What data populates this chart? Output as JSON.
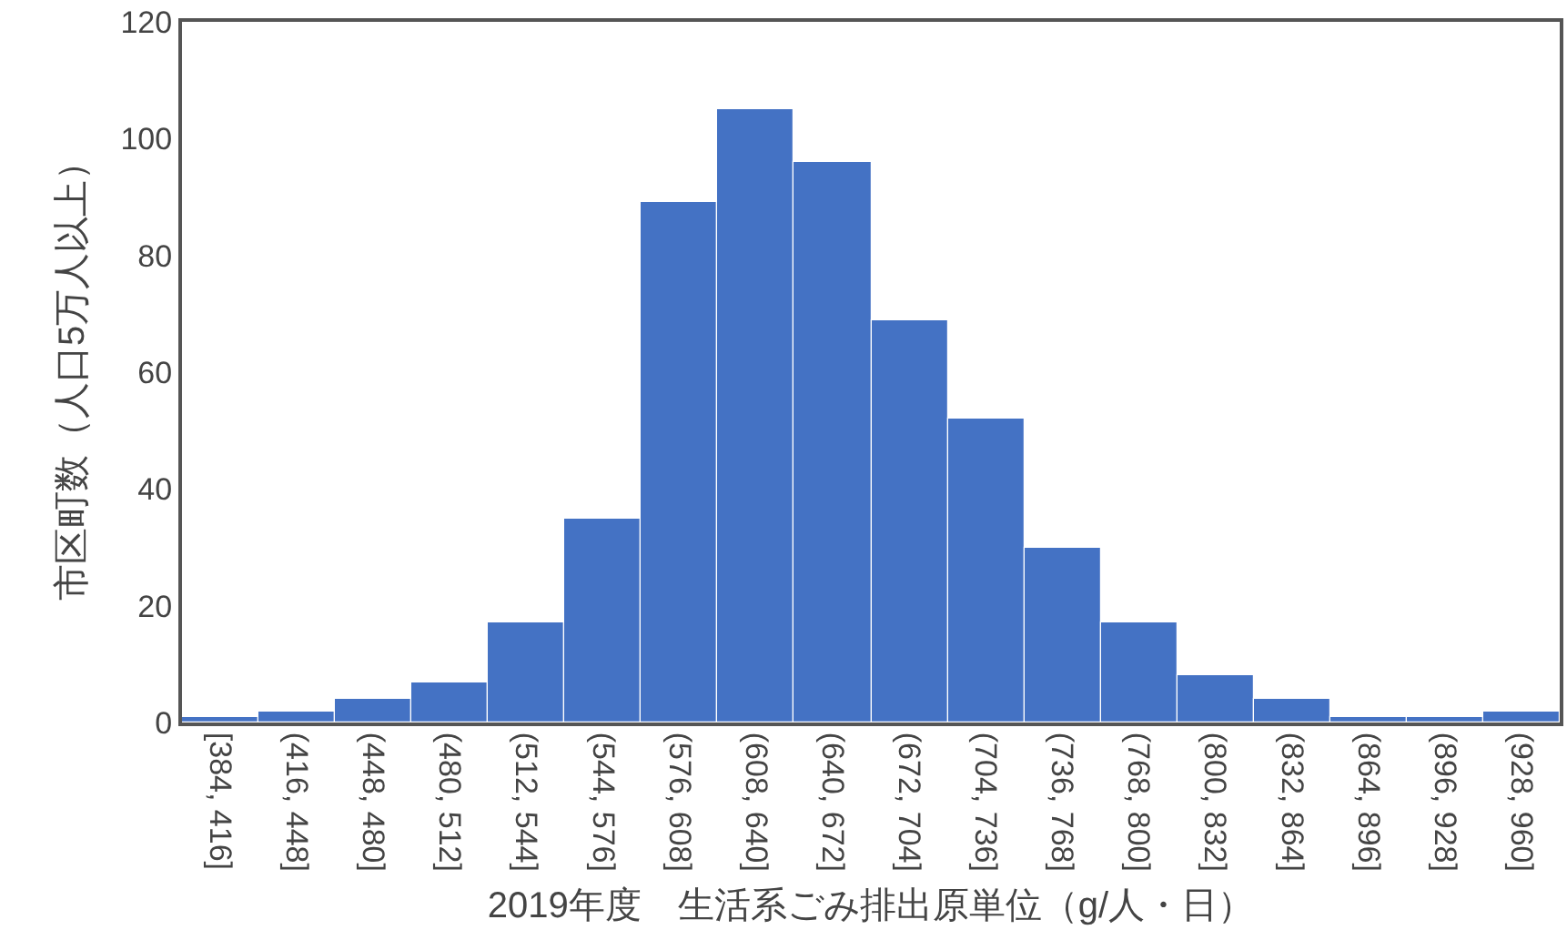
{
  "chart_data": {
    "type": "bar",
    "xlabel": "2019年度　生活系ごみ排出原単位（g/人・日）",
    "ylabel": "市区町数（人口5万人以上）",
    "categories": [
      "[384, 416]",
      "(416, 448]",
      "(448, 480]",
      "(480, 512]",
      "(512, 544]",
      "(544, 576]",
      "(576, 608]",
      "(608, 640]",
      "(640, 672]",
      "(672, 704]",
      "(704, 736]",
      "(736, 768]",
      "(768, 800]",
      "(800, 832]",
      "(832, 864]",
      "(864, 896]",
      "(896, 928]",
      "(928, 960]"
    ],
    "values": [
      1,
      2,
      4,
      7,
      17,
      35,
      89,
      105,
      96,
      69,
      52,
      30,
      17,
      8,
      4,
      1,
      1,
      2
    ],
    "color": "#4472c4",
    "ylim": [
      0,
      120
    ],
    "yticks": [
      0,
      20,
      40,
      60,
      80,
      100,
      120
    ]
  }
}
